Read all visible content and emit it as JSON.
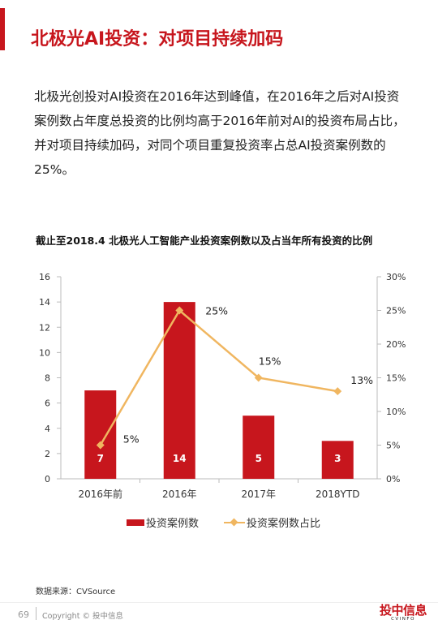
{
  "header": {
    "title": "北极光AI投资：对项目持续加码"
  },
  "body_text": "北极光创投对AI投资在2016年达到峰值，在2016年之后对AI投资案例数占年度总投资的比例均高于2016年前对AI的投资布局占比，并对项目持续加码，对同个项目重复投资率占总AI投资案例数的25%。",
  "chart_data": {
    "type": "bar",
    "title": "截止至2018.4 北极光人工智能产业投资案例数以及占当年所有投资的比例",
    "categories": [
      "2016年前",
      "2016年",
      "2017年",
      "2018YTD"
    ],
    "series": [
      {
        "name": "投资案例数",
        "type": "bar",
        "axis": "left",
        "color": "#c7161d",
        "values": [
          7,
          14,
          5,
          3
        ],
        "labels": [
          "7",
          "14",
          "5",
          "3"
        ]
      },
      {
        "name": "投资案例数占比",
        "type": "line",
        "axis": "right",
        "color": "#f0b660",
        "values": [
          5,
          25,
          15,
          13
        ],
        "labels": [
          "5%",
          "25%",
          "15%",
          "13%"
        ]
      }
    ],
    "y_left": {
      "min": 0,
      "max": 16,
      "ticks": [
        "0",
        "2",
        "4",
        "6",
        "8",
        "10",
        "12",
        "14",
        "16"
      ]
    },
    "y_right": {
      "min": 0,
      "max": 30,
      "ticks": [
        "0%",
        "5%",
        "10%",
        "15%",
        "20%",
        "25%",
        "30%"
      ]
    },
    "grid": false,
    "legend_position": "bottom"
  },
  "source": "数据来源：CVSource",
  "footer": {
    "page_number": "69",
    "copyright": "Copyright © 投中信息",
    "logo_text": "投中信息",
    "logo_sub": "CVINFO"
  }
}
